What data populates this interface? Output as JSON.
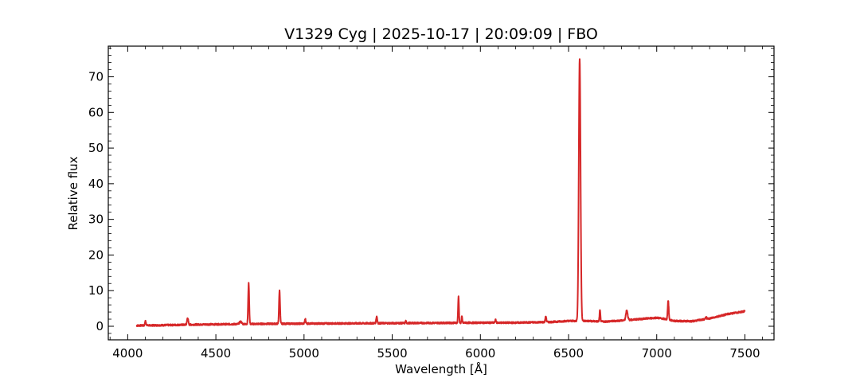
{
  "chart_data": {
    "type": "line",
    "title": "V1329 Cyg | 2025-10-17 | 20:09:09 | FBO",
    "xlabel": "Wavelength [Å]",
    "ylabel": "Relative flux",
    "xlim": [
      3890,
      7665
    ],
    "ylim": [
      -3.8,
      78.6
    ],
    "xticks": [
      4000,
      4500,
      5000,
      5500,
      6000,
      6500,
      7000,
      7500
    ],
    "xtick_labels": [
      "4000",
      "4500",
      "5000",
      "5500",
      "6000",
      "6500",
      "7000",
      "7500"
    ],
    "yticks": [
      0,
      10,
      20,
      30,
      40,
      50,
      60,
      70
    ],
    "ytick_labels": [
      "0",
      "10",
      "20",
      "30",
      "40",
      "50",
      "60",
      "70"
    ],
    "grid": false,
    "line_color": "#d62728",
    "series": [
      {
        "continuum_x": [
          4050,
          4200,
          4400,
          4600,
          4800,
          5000,
          5200,
          5400,
          5600,
          5800,
          6000,
          6200,
          6400,
          6500,
          6600,
          6700,
          6800,
          6900,
          7000,
          7050,
          7100,
          7200,
          7300,
          7400,
          7500
        ],
        "continuum_y": [
          0.2,
          0.3,
          0.5,
          0.6,
          0.7,
          0.75,
          0.8,
          0.85,
          0.9,
          0.95,
          1.0,
          1.0,
          1.2,
          1.5,
          1.5,
          1.3,
          1.6,
          2.0,
          2.4,
          2.0,
          1.5,
          1.4,
          2.2,
          3.4,
          4.2
        ],
        "lines": [
          {
            "x": 4101,
            "peak": 1.5,
            "width": 3
          },
          {
            "x": 4340,
            "peak": 2.4,
            "width": 3.5
          },
          {
            "x": 4640,
            "peak": 1.3,
            "width": 6
          },
          {
            "x": 4686,
            "peak": 12.0,
            "width": 3
          },
          {
            "x": 4861,
            "peak": 10.0,
            "width": 3
          },
          {
            "x": 5007,
            "peak": 2.0,
            "width": 3
          },
          {
            "x": 5412,
            "peak": 2.8,
            "width": 3
          },
          {
            "x": 5577,
            "peak": 1.5,
            "width": 2
          },
          {
            "x": 5876,
            "peak": 8.3,
            "width": 2.5
          },
          {
            "x": 5895,
            "peak": 2.8,
            "width": 2
          },
          {
            "x": 6086,
            "peak": 1.8,
            "width": 3
          },
          {
            "x": 6371,
            "peak": 2.8,
            "width": 3
          },
          {
            "x": 6563,
            "peak": 75.0,
            "width": 5
          },
          {
            "x": 6678,
            "peak": 4.5,
            "width": 2.5
          },
          {
            "x": 6830,
            "peak": 4.5,
            "width": 5
          },
          {
            "x": 7065,
            "peak": 7.2,
            "width": 3
          },
          {
            "x": 7280,
            "peak": 2.6,
            "width": 3
          }
        ]
      }
    ]
  }
}
